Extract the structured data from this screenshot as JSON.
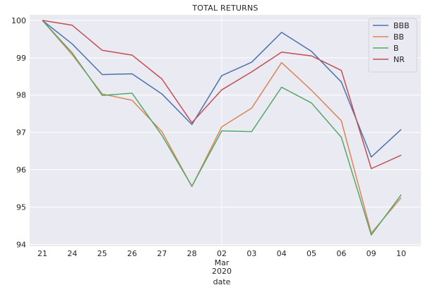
{
  "chart_data": {
    "type": "line",
    "title": "TOTAL RETURNS",
    "xlabel": "date",
    "ylabel": "",
    "categories": [
      "21",
      "24",
      "25",
      "26",
      "27",
      "28",
      "02",
      "03",
      "04",
      "05",
      "06",
      "09",
      "10"
    ],
    "x_sublabel": {
      "index": 6,
      "lines": [
        "Mar",
        "2020"
      ]
    },
    "ylim": [
      93.95,
      100.15
    ],
    "yticks": [
      94,
      95,
      96,
      97,
      98,
      99,
      100
    ],
    "grid": true,
    "legend_position": "top-right",
    "series": [
      {
        "name": "BBB",
        "color": "#4c72b0",
        "values": [
          100.0,
          99.37,
          98.55,
          98.57,
          98.03,
          97.21,
          98.52,
          98.88,
          99.68,
          99.17,
          98.35,
          96.34,
          97.08
        ]
      },
      {
        "name": "BB",
        "color": "#dd8452",
        "values": [
          100.0,
          99.08,
          98.03,
          97.86,
          97.02,
          95.55,
          97.15,
          97.65,
          98.87,
          98.13,
          97.31,
          94.3,
          95.25
        ]
      },
      {
        "name": "B",
        "color": "#55a868",
        "values": [
          100.0,
          99.13,
          97.99,
          98.05,
          96.92,
          95.56,
          97.04,
          97.02,
          98.21,
          97.79,
          96.87,
          94.25,
          95.33
        ]
      },
      {
        "name": "NR",
        "color": "#c44e52",
        "values": [
          100.0,
          99.87,
          99.2,
          99.07,
          98.43,
          97.26,
          98.14,
          98.62,
          99.15,
          99.05,
          98.66,
          96.03,
          96.39
        ]
      }
    ]
  }
}
